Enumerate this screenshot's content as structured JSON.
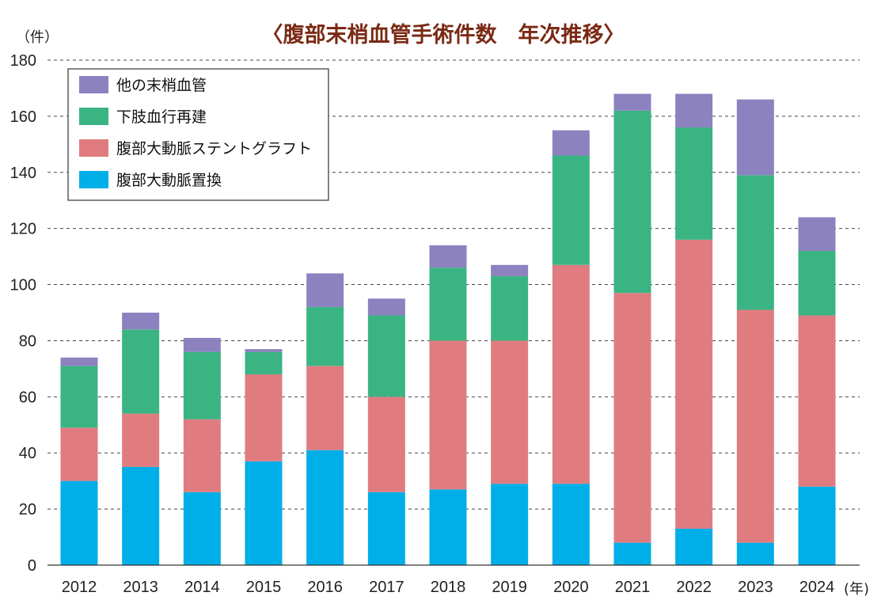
{
  "chart_data": {
    "type": "bar",
    "stacked": true,
    "title": "〈腹部末梢血管手術件数　年次推移〉",
    "y_unit": "（件）",
    "x_unit": "(年)",
    "ylim": [
      0,
      180
    ],
    "y_ticks": [
      0,
      20,
      40,
      60,
      80,
      100,
      120,
      140,
      160,
      180
    ],
    "grid": true,
    "legend_position": "top-left",
    "categories": [
      "2012",
      "2013",
      "2014",
      "2015",
      "2016",
      "2017",
      "2018",
      "2019",
      "2020",
      "2021",
      "2022",
      "2023",
      "2024"
    ],
    "series": [
      {
        "name": "腹部大動脈置換",
        "color": "#00aee8",
        "values": [
          30,
          35,
          26,
          37,
          41,
          26,
          27,
          29,
          29,
          8,
          13,
          8,
          28
        ]
      },
      {
        "name": "腹部大動脈ステントグラフト",
        "color": "#e07c80",
        "values": [
          19,
          19,
          26,
          31,
          30,
          34,
          53,
          51,
          78,
          89,
          103,
          83,
          61
        ]
      },
      {
        "name": "下肢血行再建",
        "color": "#3ab482",
        "values": [
          22,
          30,
          24,
          8,
          21,
          29,
          26,
          23,
          39,
          65,
          40,
          48,
          23
        ]
      },
      {
        "name": "他の末梢血管",
        "color": "#8c82c0",
        "values": [
          3,
          6,
          5,
          1,
          12,
          6,
          8,
          4,
          9,
          6,
          12,
          27,
          12
        ]
      }
    ],
    "legend_order": [
      "他の末梢血管",
      "下肢血行再建",
      "腹部大動脈ステントグラフト",
      "腹部大動脈置換"
    ]
  }
}
